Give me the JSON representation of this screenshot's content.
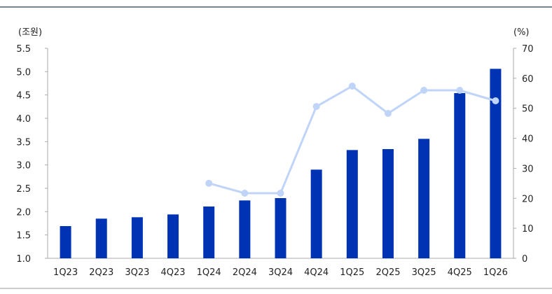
{
  "chart_data": {
    "type": "bar+line",
    "categories": [
      "1Q23",
      "2Q23",
      "3Q23",
      "4Q23",
      "1Q24",
      "2Q24",
      "3Q24",
      "4Q24",
      "1Q25",
      "2Q25",
      "3Q25",
      "4Q25",
      "1Q26"
    ],
    "series": [
      {
        "axis": "left",
        "kind": "bar",
        "color": "#0033b4",
        "values": [
          1.69,
          1.85,
          1.88,
          1.94,
          2.11,
          2.24,
          2.29,
          2.9,
          3.32,
          3.34,
          3.56,
          4.54,
          5.06
        ]
      },
      {
        "axis": "right",
        "kind": "line",
        "color": "#c0d4f8",
        "values": [
          null,
          null,
          null,
          null,
          25.0,
          21.7,
          21.7,
          50.6,
          57.4,
          48.3,
          56.0,
          56.0,
          52.5
        ]
      }
    ],
    "left_axis": {
      "unit": "(조원)",
      "range": [
        1.0,
        5.5
      ],
      "ticks": [
        "1.0",
        "1.5",
        "2.0",
        "2.5",
        "3.0",
        "3.5",
        "4.0",
        "4.5",
        "5.0",
        "5.5"
      ]
    },
    "right_axis": {
      "unit": "(%)",
      "range": [
        0,
        70
      ],
      "ticks": [
        "0",
        "10",
        "20",
        "30",
        "40",
        "50",
        "60",
        "70"
      ]
    },
    "grid": false,
    "legend": "none"
  }
}
